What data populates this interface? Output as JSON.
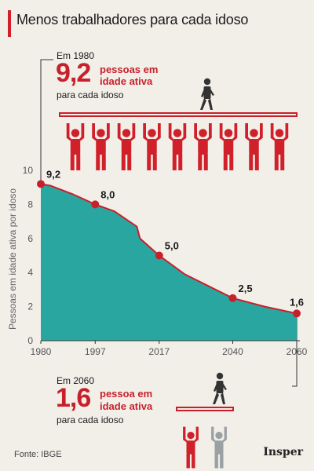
{
  "title": "Menos trabalhadores para cada idoso",
  "top_callout": {
    "year_label": "Em 1980",
    "value": "9,2",
    "red_text_line1": "pessoas em",
    "red_text_line2": "idade ativa",
    "bottom_text": "para cada idoso"
  },
  "bottom_callout": {
    "year_label": "Em 2060",
    "value": "1,6",
    "red_text_line1": "pessoa em",
    "red_text_line2": "idade ativa",
    "bottom_text": "para cada idoso"
  },
  "source": "Fonte: IBGE",
  "brand": "Insper",
  "colors": {
    "area": "#29a6a0",
    "line": "#c8202b",
    "accent": "#c8202b",
    "figure_red": "#d0202a",
    "figure_dark": "#333333",
    "figure_gray": "#9aa0a3"
  },
  "chart_data": {
    "type": "area",
    "title": "Menos trabalhadores para cada idoso",
    "xlabel": "",
    "ylabel": "Pessoas em idade ativa por idoso",
    "x": [
      1980,
      1983,
      1990,
      1997,
      2003,
      2010,
      2011,
      2017,
      2025,
      2040,
      2050,
      2060
    ],
    "y": [
      9.2,
      9.1,
      8.6,
      8.0,
      7.6,
      6.7,
      6.0,
      5.0,
      3.9,
      2.5,
      2.0,
      1.6
    ],
    "highlighted_points": [
      {
        "x": 1980,
        "y": 9.2,
        "label": "9,2"
      },
      {
        "x": 1997,
        "y": 8.0,
        "label": "8,0"
      },
      {
        "x": 2017,
        "y": 5.0,
        "label": "5,0"
      },
      {
        "x": 2040,
        "y": 2.5,
        "label": "2,5"
      },
      {
        "x": 2060,
        "y": 1.6,
        "label": "1,6"
      }
    ],
    "x_ticks": [
      "1980",
      "1997",
      "2017",
      "2040",
      "2060"
    ],
    "y_ticks": [
      "0",
      "2",
      "4",
      "6",
      "8",
      "10"
    ],
    "xlim": [
      1980,
      2060
    ],
    "ylim": [
      0,
      10
    ],
    "grid": false
  }
}
